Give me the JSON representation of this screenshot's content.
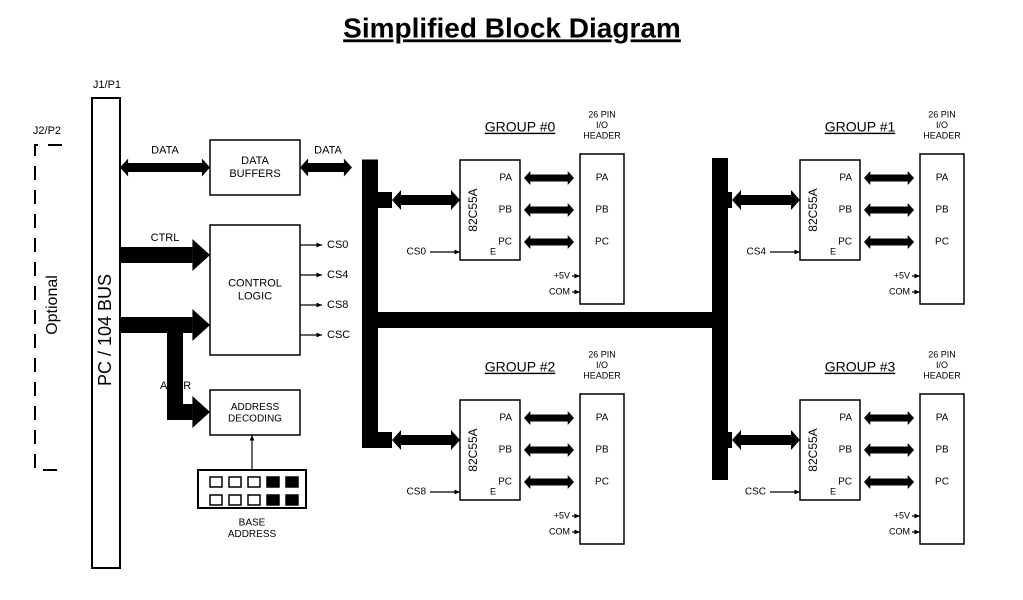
{
  "title": "Simplified Block Diagram",
  "connectors": {
    "j2p2": "J2/P2",
    "j1p1": "J1/P1",
    "optional": "Optional",
    "bus": "PC / 104 BUS"
  },
  "left": {
    "data_buffers": "DATA\nBUFFERS",
    "control_logic": "CONTROL\nLOGIC",
    "address_decoding": "ADDRESS\nDECODING",
    "base_address": "BASE\nADDRESS",
    "cs": [
      "CS0",
      "CS4",
      "CS8",
      "CSC"
    ],
    "lines": {
      "data": "DATA",
      "ctrl": "CTRL",
      "addr": "ADDR"
    }
  },
  "groups": [
    {
      "name": "GROUP #0",
      "chip": "82C55A",
      "cs_in": "CS0",
      "ports": [
        "PA",
        "PB",
        "PC"
      ],
      "header": "26 PIN\nI/O\nHEADER",
      "extra": [
        "+5V",
        "COM"
      ],
      "e": "E"
    },
    {
      "name": "GROUP #1",
      "chip": "82C55A",
      "cs_in": "CS4",
      "ports": [
        "PA",
        "PB",
        "PC"
      ],
      "header": "26 PIN\nI/O\nHEADER",
      "extra": [
        "+5V",
        "COM"
      ],
      "e": "E"
    },
    {
      "name": "GROUP #2",
      "chip": "82C55A",
      "cs_in": "CS8",
      "ports": [
        "PA",
        "PB",
        "PC"
      ],
      "header": "26 PIN\nI/O\nHEADER",
      "extra": [
        "+5V",
        "COM"
      ],
      "e": "E"
    },
    {
      "name": "GROUP #3",
      "chip": "82C55A",
      "cs_in": "CSC",
      "ports": [
        "PA",
        "PB",
        "PC"
      ],
      "header": "26 PIN\nI/O\nHEADER",
      "extra": [
        "+5V",
        "COM"
      ],
      "e": "E"
    }
  ],
  "style": {
    "stroke": "#000000",
    "fill": "#000000",
    "page_bg": "#ffffff",
    "title_fontsize": 28,
    "label_fontsize": 11,
    "small_fontsize": 9,
    "header_fontsize": 14,
    "stroke_w": 1.5,
    "arrow_w": 14,
    "bus_w": 16
  }
}
